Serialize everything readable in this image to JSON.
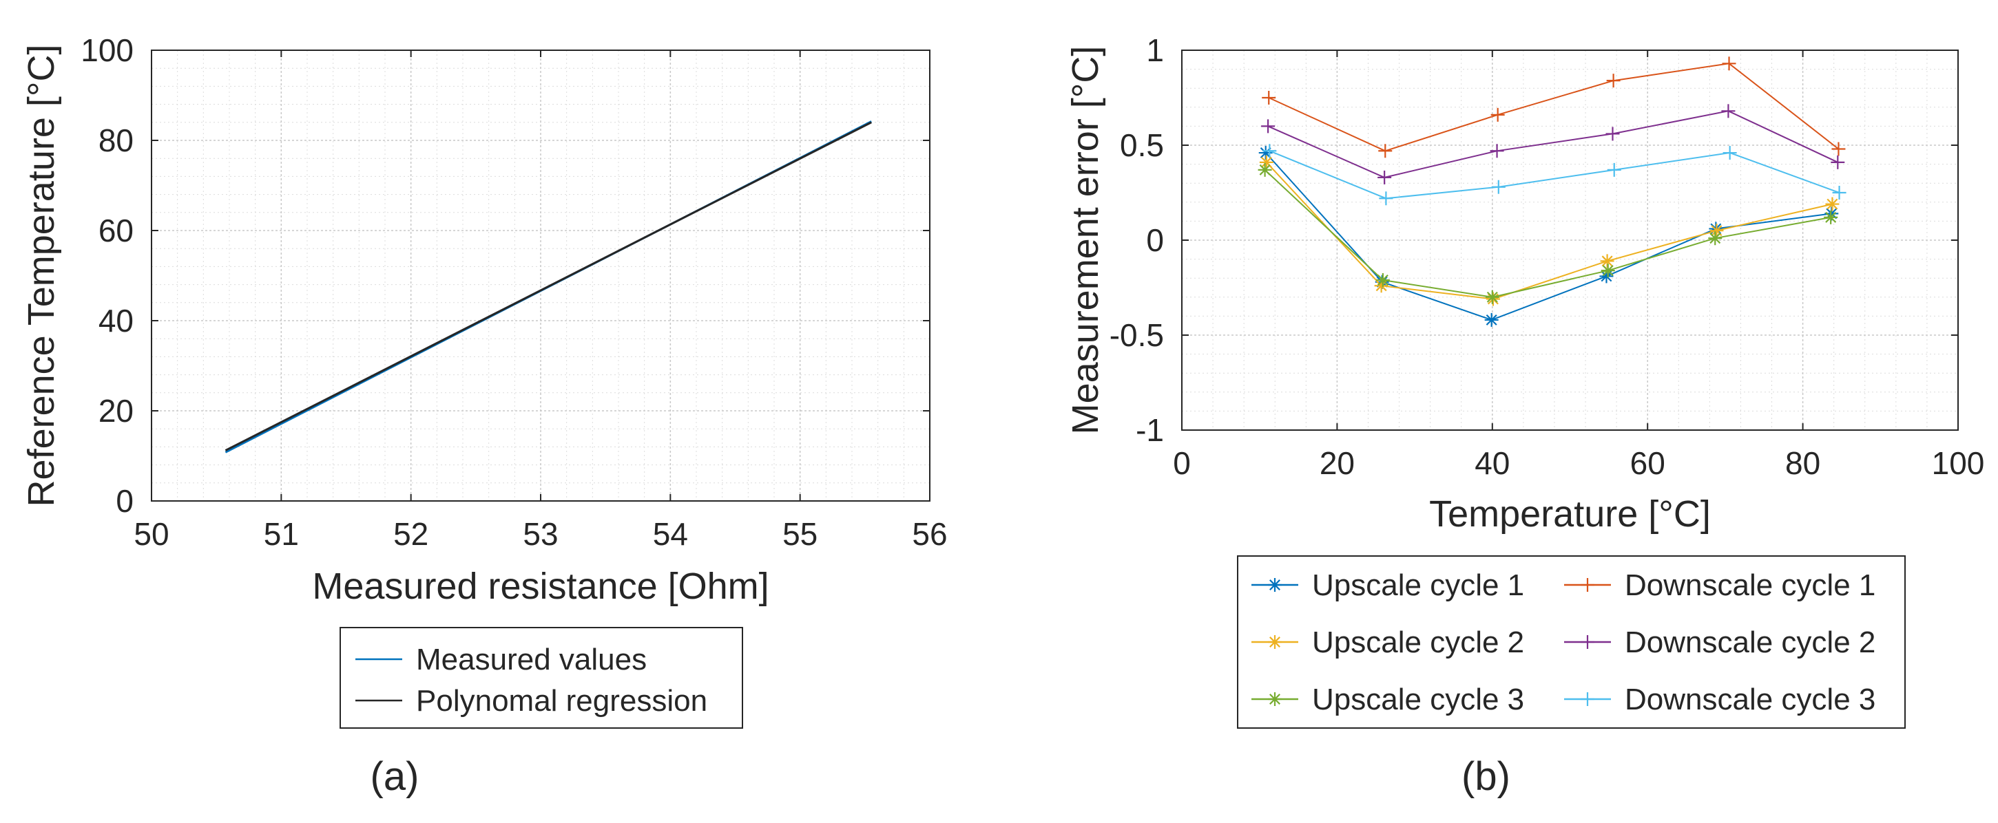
{
  "chart_data": [
    {
      "type": "line",
      "panel_label": "(a)",
      "title": "",
      "xlabel": "Measured resistance [Ohm]",
      "ylabel": "Reference Temperature [°C]",
      "xlim": [
        50,
        56
      ],
      "ylim": [
        0,
        100
      ],
      "x_ticks": [
        50,
        51,
        52,
        53,
        54,
        55,
        56
      ],
      "y_ticks": [
        0,
        20,
        40,
        60,
        80,
        100
      ],
      "grid": true,
      "minor_grid": true,
      "legend_position": "below",
      "series": [
        {
          "name": "Measured values",
          "color": "#0072bd",
          "x": [
            50.57,
            55.55
          ],
          "y": [
            10.8,
            84.2
          ]
        },
        {
          "name": "Polynomal regression",
          "color": "#262626",
          "x": [
            50.57,
            55.55
          ],
          "y": [
            11.2,
            84.0
          ]
        }
      ]
    },
    {
      "type": "line",
      "panel_label": "(b)",
      "title": "",
      "xlabel": "Temperature [°C]",
      "ylabel": "Measurement error [°C]",
      "xlim": [
        0,
        100
      ],
      "ylim": [
        -1,
        1
      ],
      "x_ticks": [
        0,
        20,
        40,
        60,
        80,
        100
      ],
      "y_ticks": [
        -1,
        -0.5,
        0,
        0.5,
        1
      ],
      "grid": true,
      "minor_grid": true,
      "legend_position": "below",
      "legend_columns": 2,
      "series": [
        {
          "name": "Upscale cycle 1",
          "color": "#0072bd",
          "marker": "asterisk",
          "x": [
            10.8,
            25.8,
            39.9,
            54.7,
            68.8,
            83.7
          ],
          "y": [
            0.46,
            -0.22,
            -0.42,
            -0.19,
            0.06,
            0.14
          ]
        },
        {
          "name": "Downscale cycle 1",
          "color": "#d95319",
          "marker": "plus",
          "x": [
            11.2,
            26.2,
            40.7,
            55.6,
            70.5,
            84.6
          ],
          "y": [
            0.75,
            0.47,
            0.66,
            0.84,
            0.93,
            0.48
          ]
        },
        {
          "name": "Upscale cycle 2",
          "color": "#edb120",
          "marker": "asterisk",
          "x": [
            10.9,
            25.7,
            40.1,
            54.8,
            68.9,
            83.8
          ],
          "y": [
            0.41,
            -0.24,
            -0.31,
            -0.11,
            0.05,
            0.19
          ]
        },
        {
          "name": "Downscale cycle 2",
          "color": "#7e2f8e",
          "marker": "plus",
          "x": [
            11.1,
            26.1,
            40.6,
            55.5,
            70.4,
            84.5
          ],
          "y": [
            0.6,
            0.33,
            0.47,
            0.56,
            0.68,
            0.41
          ]
        },
        {
          "name": "Upscale cycle 3",
          "color": "#77ac30",
          "marker": "asterisk",
          "x": [
            10.7,
            25.9,
            40.0,
            54.9,
            68.7,
            83.6
          ],
          "y": [
            0.37,
            -0.21,
            -0.3,
            -0.16,
            0.01,
            0.12
          ]
        },
        {
          "name": "Downscale cycle 3",
          "color": "#4dbeee",
          "marker": "plus",
          "x": [
            11.3,
            26.3,
            40.8,
            55.7,
            70.6,
            84.7
          ],
          "y": [
            0.47,
            0.22,
            0.28,
            0.37,
            0.46,
            0.25
          ]
        }
      ]
    }
  ]
}
